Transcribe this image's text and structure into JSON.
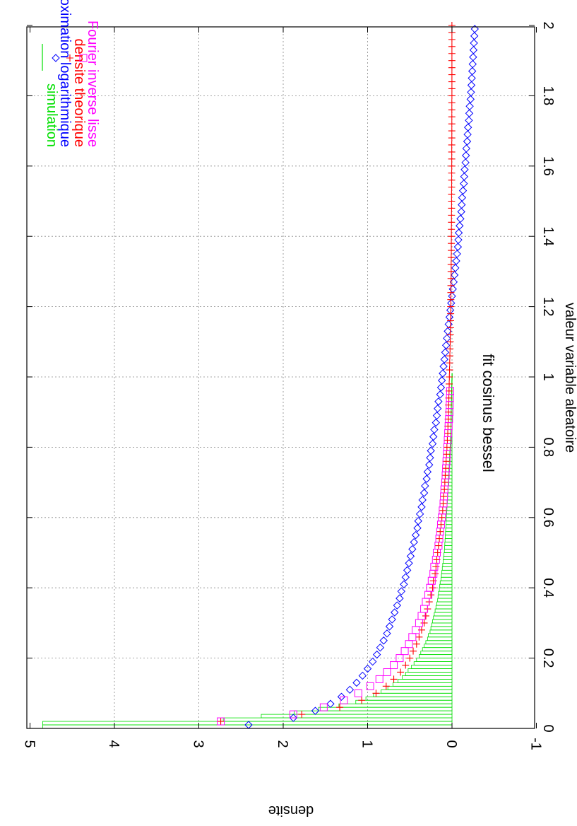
{
  "chart_data": {
    "type": "line",
    "title": "fit cosinus bessel",
    "xlabel": "valeur variable aleatoire",
    "ylabel": "densite",
    "xlim": [
      0,
      2
    ],
    "ylim": [
      -1,
      5
    ],
    "grid": true,
    "legend_position": "top-right",
    "orientation": "rotated 90 degrees clockwise (landscape plot on portrait page)",
    "x_ticks": [
      "0",
      "0.2",
      "0.4",
      "0.6",
      "0.8",
      "1",
      "1.2",
      "1.4",
      "1.6",
      "1.8",
      "2"
    ],
    "y_ticks": [
      "-1",
      "0",
      "1",
      "2",
      "3",
      "4",
      "5"
    ],
    "series": [
      {
        "name": "simulation",
        "style": "histogram",
        "color": "#00e000",
        "bin_width": 0.01,
        "x": [
          0.0,
          0.01,
          0.02,
          0.03,
          0.04,
          0.05,
          0.06,
          0.07,
          0.08,
          0.09,
          0.1,
          0.11,
          0.12,
          0.13,
          0.14,
          0.15,
          0.16,
          0.17,
          0.18,
          0.19,
          0.2,
          0.21,
          0.22,
          0.23,
          0.24,
          0.25,
          0.26,
          0.27,
          0.28,
          0.29,
          0.3,
          0.31,
          0.32,
          0.33,
          0.34,
          0.35,
          0.36,
          0.37,
          0.38,
          0.39,
          0.4,
          0.41,
          0.42,
          0.43,
          0.44,
          0.45,
          0.46,
          0.47,
          0.48,
          0.49,
          0.5,
          0.51,
          0.52,
          0.53,
          0.54,
          0.55,
          0.56,
          0.57,
          0.58,
          0.59,
          0.6,
          0.61,
          0.62,
          0.63,
          0.64,
          0.65,
          0.66,
          0.67,
          0.68,
          0.69,
          0.7,
          0.71,
          0.72,
          0.73,
          0.74,
          0.75,
          0.76,
          0.77,
          0.78,
          0.79,
          0.8,
          0.81,
          0.82,
          0.83,
          0.84,
          0.85,
          0.86,
          0.87,
          0.88,
          0.89,
          0.9,
          0.91,
          0.92,
          0.93,
          0.94,
          0.95,
          0.96,
          0.97,
          0.98,
          0.99,
          1.0
        ],
        "values": [
          4.85,
          4.85,
          2.71,
          2.26,
          1.87,
          1.58,
          1.34,
          1.14,
          1.02,
          0.93,
          0.84,
          0.76,
          0.7,
          0.64,
          0.59,
          0.55,
          0.52,
          0.48,
          0.45,
          0.42,
          0.39,
          0.37,
          0.35,
          0.33,
          0.31,
          0.29,
          0.28,
          0.26,
          0.25,
          0.24,
          0.23,
          0.22,
          0.21,
          0.2,
          0.19,
          0.18,
          0.17,
          0.165,
          0.16,
          0.15,
          0.145,
          0.14,
          0.13,
          0.125,
          0.12,
          0.115,
          0.11,
          0.105,
          0.1,
          0.095,
          0.09,
          0.088,
          0.085,
          0.082,
          0.08,
          0.077,
          0.075,
          0.072,
          0.07,
          0.068,
          0.065,
          0.062,
          0.06,
          0.058,
          0.055,
          0.053,
          0.05,
          0.048,
          0.046,
          0.044,
          0.042,
          0.04,
          0.038,
          0.036,
          0.034,
          0.032,
          0.03,
          0.028,
          0.026,
          0.024,
          0.022,
          0.02,
          0.019,
          0.018,
          0.017,
          0.016,
          0.015,
          0.014,
          0.013,
          0.012,
          0.011,
          0.01,
          0.009,
          0.008,
          0.007,
          0.006,
          0.005,
          0.004,
          0.003,
          0.002,
          0.001
        ]
      },
      {
        "name": "approximation logarithmique",
        "style": "diamond-markers",
        "color": "#0000ff",
        "x": [
          0.01,
          0.03,
          0.05,
          0.07,
          0.09,
          0.11,
          0.13,
          0.15,
          0.17,
          0.19,
          0.21,
          0.23,
          0.25,
          0.27,
          0.29,
          0.31,
          0.33,
          0.35,
          0.37,
          0.39,
          0.41,
          0.43,
          0.45,
          0.47,
          0.49,
          0.51,
          0.53,
          0.55,
          0.57,
          0.59,
          0.61,
          0.63,
          0.65,
          0.67,
          0.69,
          0.71,
          0.73,
          0.75,
          0.77,
          0.79,
          0.81,
          0.83,
          0.85,
          0.87,
          0.89,
          0.91,
          0.93,
          0.95,
          0.97,
          0.99,
          1.01,
          1.03,
          1.05,
          1.07,
          1.09,
          1.11,
          1.13,
          1.15,
          1.17,
          1.19,
          1.21,
          1.23,
          1.25,
          1.27,
          1.29,
          1.31,
          1.33,
          1.35,
          1.37,
          1.39,
          1.41,
          1.43,
          1.45,
          1.47,
          1.49,
          1.51,
          1.53,
          1.55,
          1.57,
          1.59,
          1.61,
          1.63,
          1.65,
          1.67,
          1.69,
          1.71,
          1.73,
          1.75,
          1.77,
          1.79,
          1.81,
          1.83,
          1.85,
          1.87,
          1.89,
          1.91,
          1.93,
          1.95,
          1.97,
          1.99
        ],
        "values": [
          2.41,
          1.88,
          1.62,
          1.44,
          1.31,
          1.21,
          1.13,
          1.06,
          1.0,
          0.94,
          0.89,
          0.85,
          0.81,
          0.77,
          0.74,
          0.71,
          0.68,
          0.65,
          0.62,
          0.6,
          0.57,
          0.55,
          0.53,
          0.51,
          0.49,
          0.47,
          0.45,
          0.43,
          0.41,
          0.4,
          0.38,
          0.36,
          0.35,
          0.33,
          0.32,
          0.3,
          0.29,
          0.27,
          0.26,
          0.25,
          0.23,
          0.22,
          0.21,
          0.19,
          0.18,
          0.17,
          0.16,
          0.14,
          0.13,
          0.12,
          0.11,
          0.1,
          0.09,
          0.08,
          0.07,
          0.06,
          0.05,
          0.04,
          0.03,
          0.02,
          0.01,
          0.0,
          -0.01,
          -0.02,
          -0.03,
          -0.04,
          -0.05,
          -0.06,
          -0.07,
          -0.075,
          -0.08,
          -0.09,
          -0.1,
          -0.11,
          -0.115,
          -0.12,
          -0.13,
          -0.14,
          -0.145,
          -0.15,
          -0.16,
          -0.165,
          -0.17,
          -0.18,
          -0.185,
          -0.19,
          -0.2,
          -0.205,
          -0.21,
          -0.22,
          -0.225,
          -0.23,
          -0.235,
          -0.24,
          -0.245,
          -0.25,
          -0.255,
          -0.26,
          -0.265,
          -0.27
        ]
      },
      {
        "name": "densite theorique",
        "style": "plus-markers",
        "color": "#ff0000",
        "x": [
          0.02,
          0.04,
          0.06,
          0.08,
          0.1,
          0.12,
          0.14,
          0.16,
          0.18,
          0.2,
          0.22,
          0.24,
          0.26,
          0.28,
          0.3,
          0.32,
          0.34,
          0.36,
          0.38,
          0.4,
          0.42,
          0.44,
          0.46,
          0.48,
          0.5,
          0.52,
          0.54,
          0.56,
          0.58,
          0.6,
          0.62,
          0.64,
          0.66,
          0.68,
          0.7,
          0.72,
          0.74,
          0.76,
          0.78,
          0.8,
          0.82,
          0.84,
          0.86,
          0.88,
          0.9,
          0.92,
          0.94,
          0.96,
          0.98,
          1.0,
          1.02,
          1.04,
          1.06,
          1.08,
          1.1,
          1.12,
          1.14,
          1.16,
          1.18,
          1.2,
          1.22,
          1.24,
          1.26,
          1.28,
          1.3,
          1.32,
          1.34,
          1.36,
          1.38,
          1.4,
          1.42,
          1.44,
          1.46,
          1.48,
          1.5,
          1.52,
          1.54,
          1.56,
          1.58,
          1.6,
          1.62,
          1.64,
          1.66,
          1.68,
          1.7,
          1.72,
          1.74,
          1.76,
          1.78,
          1.8,
          1.82,
          1.84,
          1.86,
          1.88,
          1.9,
          1.92,
          1.94,
          1.96,
          1.98,
          2.0
        ],
        "values": [
          2.74,
          1.78,
          1.33,
          1.07,
          0.9,
          0.78,
          0.69,
          0.61,
          0.55,
          0.5,
          0.46,
          0.42,
          0.39,
          0.36,
          0.33,
          0.31,
          0.29,
          0.27,
          0.25,
          0.23,
          0.22,
          0.2,
          0.19,
          0.18,
          0.17,
          0.16,
          0.15,
          0.14,
          0.13,
          0.12,
          0.11,
          0.105,
          0.1,
          0.09,
          0.085,
          0.08,
          0.075,
          0.07,
          0.065,
          0.06,
          0.055,
          0.05,
          0.048,
          0.045,
          0.042,
          0.04,
          0.037,
          0.035,
          0.033,
          0.031,
          0.029,
          0.027,
          0.025,
          0.023,
          0.021,
          0.02,
          0.018,
          0.017,
          0.016,
          0.015,
          0.014,
          0.013,
          0.012,
          0.011,
          0.01,
          0.01,
          0.009,
          0.008,
          0.008,
          0.007,
          0.007,
          0.006,
          0.006,
          0.005,
          0.005,
          0.005,
          0.004,
          0.004,
          0.004,
          0.003,
          0.003,
          0.003,
          0.003,
          0.002,
          0.002,
          0.002,
          0.002,
          0.002,
          0.002,
          0.001,
          0.001,
          0.001,
          0.001,
          0.001,
          0.001,
          0.001,
          0.001,
          0.001,
          0.001,
          0.001
        ]
      },
      {
        "name": "Fourier inverse lisse",
        "style": "square-markers",
        "color": "#ff00ff",
        "x": [
          0.02,
          0.04,
          0.06,
          0.08,
          0.1,
          0.12,
          0.14,
          0.16,
          0.18,
          0.2,
          0.22,
          0.24,
          0.26,
          0.28,
          0.3,
          0.32,
          0.34,
          0.36,
          0.38,
          0.4,
          0.42,
          0.44,
          0.46,
          0.48,
          0.5,
          0.52,
          0.54,
          0.56,
          0.58,
          0.6,
          0.62,
          0.64,
          0.66,
          0.68,
          0.7,
          0.72,
          0.74,
          0.76,
          0.78,
          0.8,
          0.82,
          0.84,
          0.86,
          0.88,
          0.9,
          0.92,
          0.94,
          0.96
        ],
        "values": [
          2.74,
          1.88,
          1.52,
          1.28,
          1.11,
          0.97,
          0.86,
          0.77,
          0.69,
          0.62,
          0.56,
          0.51,
          0.47,
          0.43,
          0.39,
          0.36,
          0.33,
          0.31,
          0.28,
          0.26,
          0.24,
          0.22,
          0.21,
          0.19,
          0.18,
          0.16,
          0.15,
          0.14,
          0.13,
          0.12,
          0.11,
          0.1,
          0.095,
          0.09,
          0.08,
          0.075,
          0.07,
          0.065,
          0.06,
          0.055,
          0.05,
          0.045,
          0.04,
          0.035,
          0.03,
          0.027,
          0.024,
          0.021
        ]
      }
    ]
  }
}
